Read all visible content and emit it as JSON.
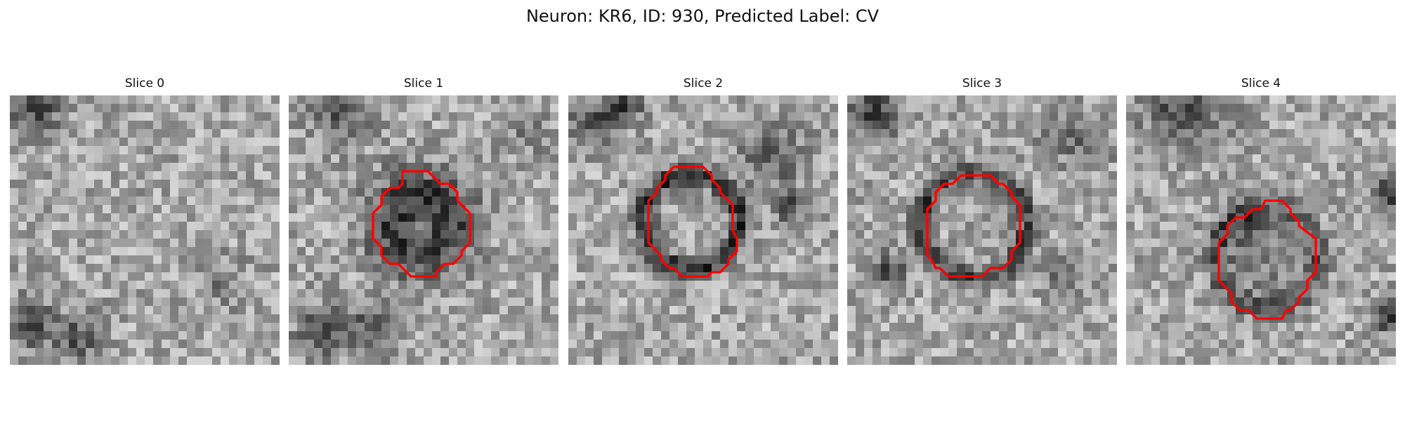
{
  "figure": {
    "title": "Neuron: KR6, ID: 930, Predicted Label: CV"
  },
  "panels": [
    {
      "title": "Slice 0"
    },
    {
      "title": "Slice 1"
    },
    {
      "title": "Slice 2"
    },
    {
      "title": "Slice 3"
    },
    {
      "title": "Slice 4"
    }
  ],
  "colors": {
    "contour": "#ff0000",
    "background": "#ffffff"
  }
}
